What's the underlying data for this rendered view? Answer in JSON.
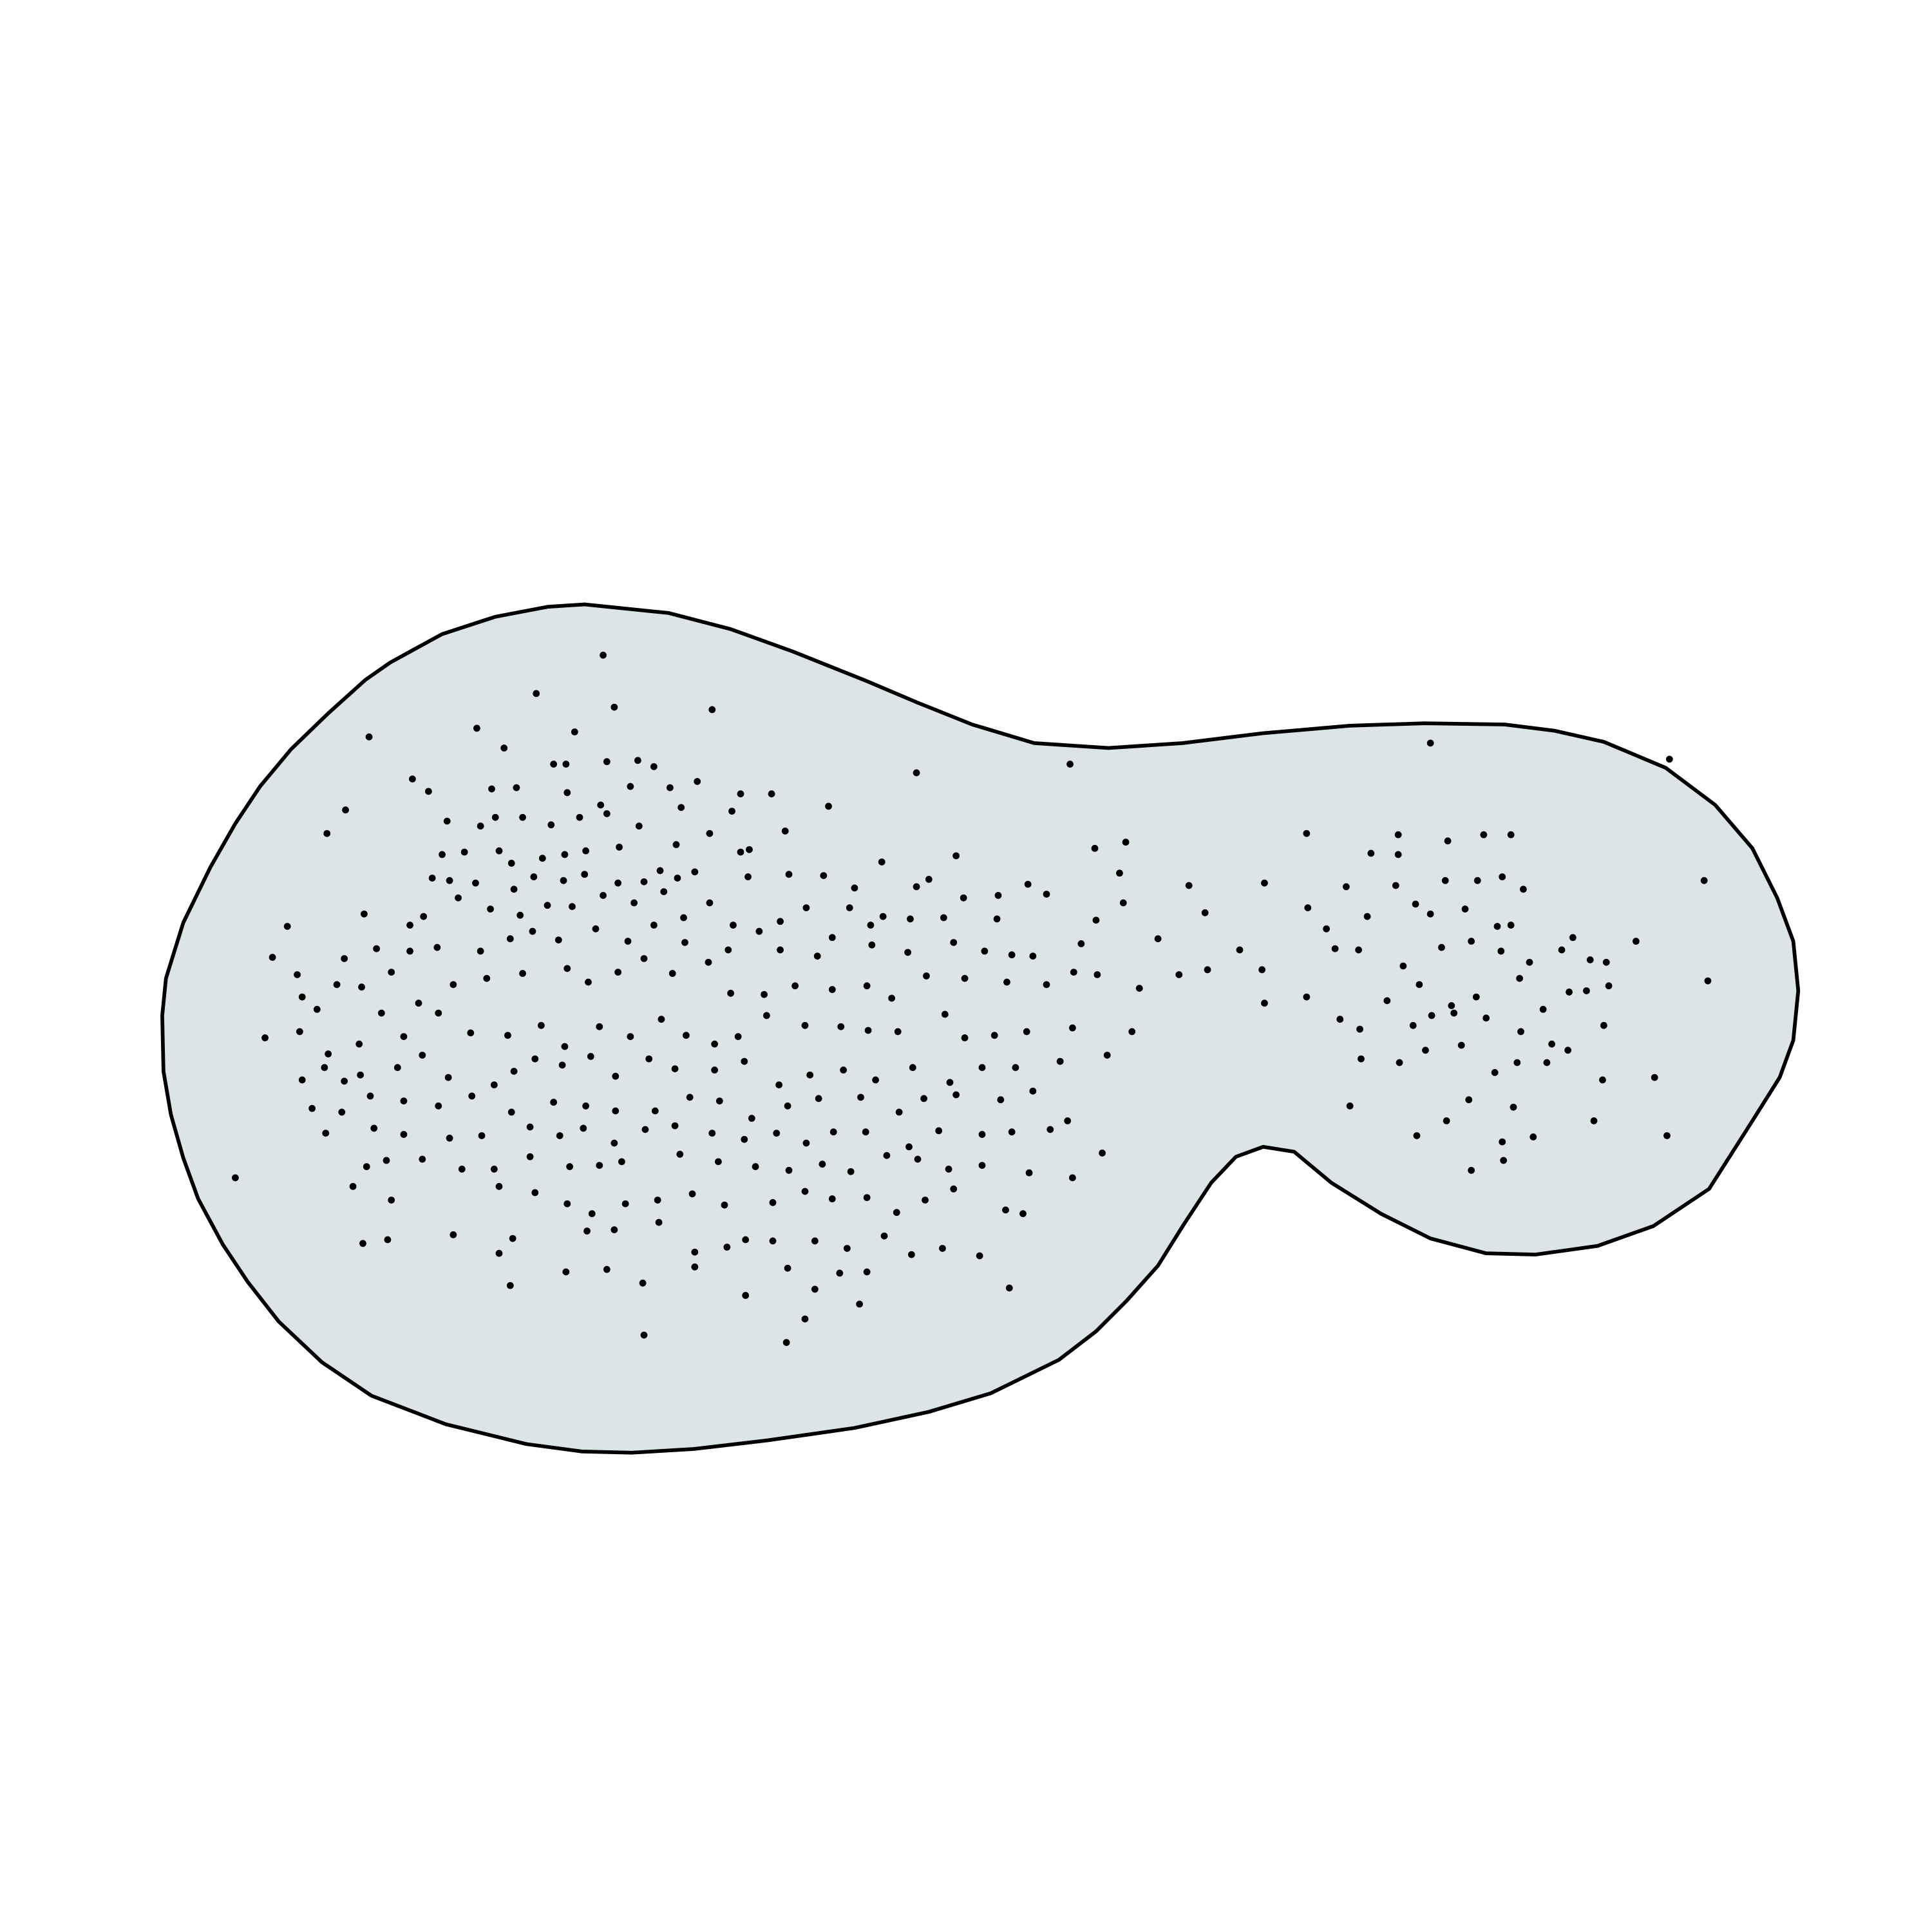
{
  "chart_data": {
    "type": "scatter",
    "color": "#000000",
    "xlim": [
      0,
      1560
    ],
    "ylim": [
      1560,
      0
    ],
    "x": [
      487,
      433,
      496,
      575,
      298,
      385,
      407,
      464,
      447,
      457,
      490,
      515,
      528,
      333,
      346,
      397,
      417,
      458,
      509,
      541,
      563,
      598,
      623,
      669,
      740,
      864,
      1155,
      1348,
      279,
      264,
      361,
      388,
      400,
      422,
      445,
      468,
      485,
      490,
      516,
      550,
      591,
      634,
      357,
      375,
      403,
      413,
      438,
      456,
      473,
      500,
      546,
      573,
      598,
      605,
      712,
      772,
      884,
      909,
      1055,
      1129,
      1169,
      1198,
      1220,
      1107,
      1129,
      349,
      363,
      384,
      415,
      431,
      455,
      472,
      499,
      520,
      533,
      547,
      561,
      604,
      637,
      665,
      690,
      740,
      750,
      830,
      845,
      904,
      960,
      1021,
      1087,
      1127,
      1167,
      1193,
      1213,
      1230,
      294,
      331,
      342,
      370,
      396,
      420,
      442,
      462,
      487,
      512,
      536,
      552,
      573,
      592,
      630,
      651,
      686,
      703,
      713,
      735,
      762,
      778,
      806,
      805,
      873,
      885,
      907,
      973,
      1056,
      1071,
      1104,
      1143,
      1155,
      1183,
      1209,
      1220,
      232,
      220,
      240,
      278,
      304,
      331,
      353,
      388,
      412,
      430,
      451,
      481,
      507,
      528,
      553,
      588,
      613,
      630,
      660,
      672,
      704,
      733,
      770,
      795,
      817,
      834,
      935,
      1001,
      1078,
      1097,
      1133,
      1164,
      1188,
      1212,
      1235,
      1261,
      1270,
      1284,
      1297,
      1321,
      1376,
      244,
      256,
      272,
      292,
      316,
      338,
      366,
      393,
      422,
      458,
      475,
      499,
      520,
      543,
      572,
      590,
      617,
      642,
      672,
      700,
      720,
      748,
      779,
      813,
      845,
      867,
      886,
      920,
      952,
      975,
      1019,
      1055,
      1120,
      1146,
      1172,
      1192,
      1227,
      1246,
      1267,
      1281,
      1299,
      1379,
      214,
      242,
      265,
      290,
      308,
      326,
      354,
      380,
      410,
      437,
      456,
      484,
      509,
      534,
      554,
      577,
      596,
      619,
      650,
      679,
      701,
      725,
      763,
      779,
      803,
      829,
      866,
      914,
      1021,
      1082,
      1098,
      1141,
      1156,
      1174,
      1200,
      1228,
      1253,
      1266,
      1295,
      244,
      262,
      278,
      291,
      321,
      341,
      362,
      399,
      415,
      432,
      454,
      477,
      497,
      524,
      545,
      577,
      601,
      629,
      654,
      681,
      707,
      737,
      767,
      793,
      820,
      856,
      894,
      1099,
      1130,
      1151,
      1180,
      1207,
      1225,
      1249,
      1294,
      1336,
      252,
      276,
      299,
      326,
      354,
      381,
      413,
      447,
      473,
      497,
      529,
      557,
      581,
      607,
      636,
      661,
      695,
      726,
      746,
      772,
      808,
      834,
      1090,
      1186,
      1222,
      1287,
      263,
      302,
      326,
      363,
      389,
      428,
      452,
      471,
      496,
      521,
      545,
      575,
      601,
      627,
      651,
      673,
      699,
      734,
      758,
      793,
      817,
      848,
      862,
      1144,
      1168,
      1213,
      1238,
      1346,
      190,
      285,
      296,
      312,
      341,
      373,
      399,
      428,
      460,
      484,
      502,
      549,
      580,
      610,
      637,
      664,
      687,
      716,
      741,
      766,
      793,
      831,
      866,
      890,
      1188,
      1214,
      316,
      366,
      403,
      432,
      458,
      478,
      505,
      531,
      559,
      585,
      624,
      650,
      672,
      700,
      724,
      747,
      770,
      812,
      826,
      293,
      313,
      414,
      403,
      474,
      496,
      532,
      561,
      587,
      602,
      624,
      658,
      684,
      714,
      736,
      761,
      791,
      412,
      457,
      490,
      519,
      561,
      602,
      636,
      658,
      678,
      700,
      694,
      815,
      520,
      635,
      650
    ],
    "y": [
      529,
      560,
      571,
      573,
      595,
      588,
      604,
      591,
      617,
      617,
      615,
      614,
      619,
      629,
      639,
      637,
      636,
      640,
      635,
      636,
      631,
      641,
      641,
      651,
      624,
      617,
      600,
      613,
      654,
      673,
      663,
      667,
      660,
      660,
      666,
      660,
      650,
      657,
      667,
      652,
      655,
      671,
      690,
      688,
      687,
      697,
      693,
      690,
      687,
      684,
      682,
      673,
      688,
      686,
      696,
      691,
      685,
      680,
      673,
      674,
      679,
      674,
      674,
      689,
      690,
      709,
      711,
      713,
      718,
      708,
      711,
      706,
      713,
      712,
      703,
      709,
      704,
      708,
      706,
      707,
      717,
      716,
      710,
      714,
      722,
      705,
      715,
      713,
      716,
      715,
      711,
      711,
      708,
      718,
      738,
      747,
      740,
      725,
      734,
      739,
      731,
      732,
      723,
      729,
      720,
      741,
      729,
      747,
      744,
      733,
      733,
      747,
      740,
      742,
      741,
      725,
      723,
      742,
      762,
      743,
      729,
      737,
      733,
      750,
      740,
      730,
      738,
      734,
      748,
      747,
      748,
      773,
      787,
      774,
      766,
      768,
      765,
      768,
      758,
      752,
      759,
      750,
      760,
      747,
      761,
      767,
      752,
      767,
      772,
      757,
      763,
      769,
      761,
      768,
      771,
      772,
      758,
      767,
      766,
      767,
      780,
      765,
      760,
      768,
      777,
      767,
      757,
      775,
      777,
      760,
      711,
      805,
      815,
      795,
      797,
      785,
      810,
      795,
      790,
      786,
      782,
      793,
      785,
      774,
      786,
      777,
      802,
      803,
      796,
      799,
      796,
      806,
      788,
      790,
      793,
      795,
      785,
      787,
      798,
      787,
      783,
      783,
      805,
      808,
      795,
      812,
      805,
      790,
      815,
      801,
      800,
      796,
      792,
      838,
      833,
      851,
      843,
      818,
      837,
      818,
      834,
      836,
      828,
      845,
      829,
      837,
      823,
      836,
      843,
      837,
      820,
      828,
      829,
      832,
      833,
      819,
      838,
      836,
      833,
      830,
      833,
      810,
      823,
      831,
      828,
      820,
      818,
      822,
      833,
      843,
      848,
      828,
      872,
      862,
      873,
      868,
      862,
      852,
      870,
      876,
      865,
      855,
      860,
      853,
      869,
      855,
      863,
      864,
      857,
      876,
      868,
      864,
      872,
      862,
      874,
      862,
      862,
      857,
      852,
      855,
      858,
      848,
      844,
      866,
      858,
      858,
      872,
      870,
      895,
      898,
      885,
      889,
      893,
      885,
      898,
      890,
      893,
      897,
      897,
      886,
      889,
      903,
      893,
      887,
      886,
      898,
      887,
      884,
      888,
      881,
      893,
      888,
      894,
      905,
      915,
      911,
      916,
      919,
      917,
      910,
      917,
      911,
      923,
      912,
      909,
      915,
      920,
      915,
      923,
      914,
      914,
      926,
      913,
      916,
      914,
      912,
      905,
      917,
      905,
      922,
      918,
      917,
      951,
      958,
      942,
      937,
      936,
      944,
      944,
      934,
      942,
      941,
      938,
      932,
      938,
      942,
      945,
      940,
      946,
      933,
      936,
      944,
      941,
      947,
      951,
      931,
      945,
      937,
      969,
      997,
      958,
      963,
      972,
      980,
      972,
      969,
      964,
      973,
      971,
      962,
      968,
      967,
      979,
      969,
      960,
      977,
      980,
      1004,
      1001,
      1000,
      1012,
      994,
      993,
      987,
      1011,
      1007,
      1001,
      1002,
      1002,
      1008,
      998,
      1013,
      1008,
      1014,
      1038,
      1027,
      1025,
      1036,
      1023,
      1046,
      1024,
      1041,
      1028,
      1027,
      1053,
      1040,
      1078,
      1084,
      1065
    ]
  }
}
